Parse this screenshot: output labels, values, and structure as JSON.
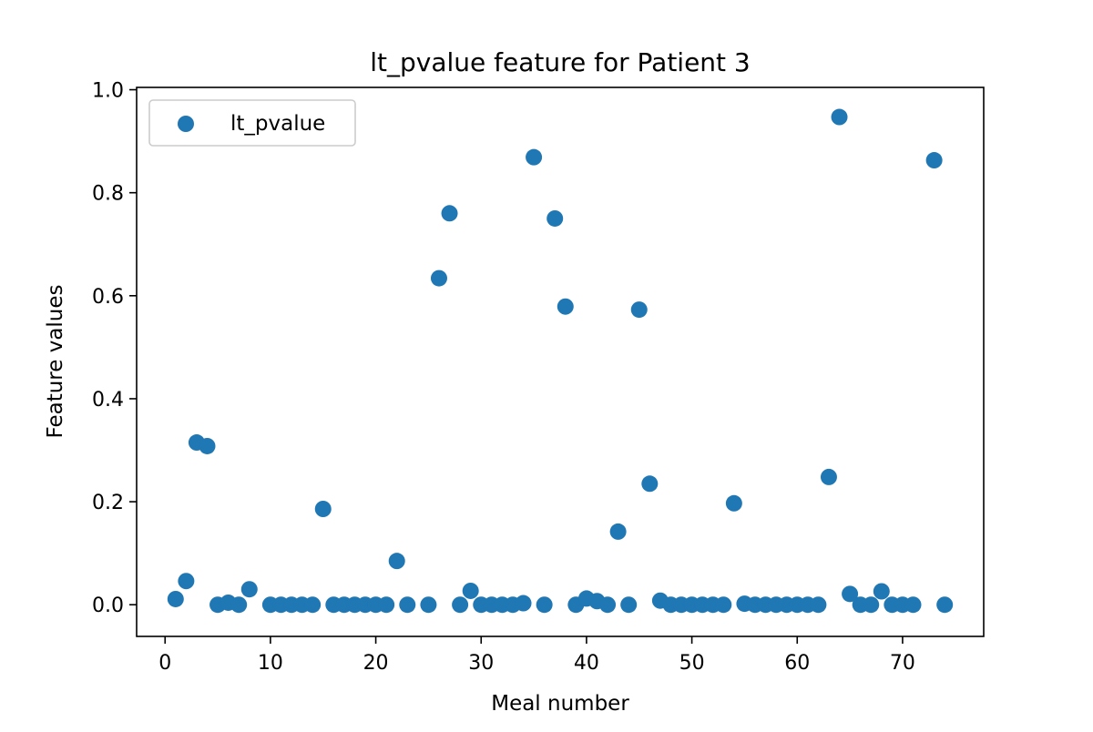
{
  "chart_data": {
    "type": "scatter",
    "title": "lt_pvalue feature for Patient 3",
    "xlabel": "Meal number",
    "ylabel": "Feature values",
    "xlim": [
      -2.7,
      77.7
    ],
    "ylim": [
      -0.0615,
      1.0045
    ],
    "xticks": [
      0,
      10,
      20,
      30,
      40,
      50,
      60,
      70
    ],
    "yticks": [
      0.0,
      0.2,
      0.4,
      0.6,
      0.8,
      1.0
    ],
    "xtick_labels": [
      "0",
      "10",
      "20",
      "30",
      "40",
      "50",
      "60",
      "70"
    ],
    "ytick_labels": [
      "0.0",
      "0.2",
      "0.4",
      "0.6",
      "0.8",
      "1.0"
    ],
    "grid": false,
    "legend_position": "top-left",
    "series": [
      {
        "name": "lt_pvalue",
        "color": "#1f77b4",
        "x": [
          1,
          2,
          3,
          4,
          5,
          6,
          7,
          8,
          10,
          11,
          12,
          13,
          14,
          15,
          16,
          17,
          18,
          19,
          20,
          21,
          22,
          23,
          25,
          26,
          27,
          28,
          29,
          30,
          31,
          32,
          33,
          34,
          35,
          36,
          37,
          38,
          39,
          40,
          41,
          42,
          43,
          44,
          45,
          46,
          47,
          48,
          49,
          50,
          51,
          52,
          53,
          54,
          55,
          56,
          57,
          58,
          59,
          60,
          61,
          62,
          63,
          64,
          65,
          66,
          67,
          68,
          69,
          70,
          71,
          73,
          74
        ],
        "y": [
          0.011,
          0.046,
          0.315,
          0.308,
          0.0,
          0.004,
          0.0,
          0.03,
          0.0,
          0.0,
          0.0,
          0.0,
          0.0,
          0.186,
          0.0,
          0.0,
          0.0,
          0.0,
          0.0,
          0.0,
          0.085,
          0.0,
          0.0,
          0.634,
          0.76,
          0.0,
          0.027,
          0.0,
          0.0,
          0.0,
          0.0,
          0.003,
          0.869,
          0.0,
          0.75,
          0.579,
          0.0,
          0.012,
          0.007,
          0.0,
          0.142,
          0.0,
          0.573,
          0.235,
          0.008,
          0.0,
          0.0,
          0.0,
          0.0,
          0.0,
          0.0,
          0.197,
          0.002,
          0.0,
          0.0,
          0.0,
          0.0,
          0.0,
          0.0,
          0.0,
          0.248,
          0.947,
          0.021,
          0.0,
          0.0,
          0.026,
          0.0,
          0.0,
          0.0,
          0.863,
          0.0
        ]
      }
    ]
  }
}
